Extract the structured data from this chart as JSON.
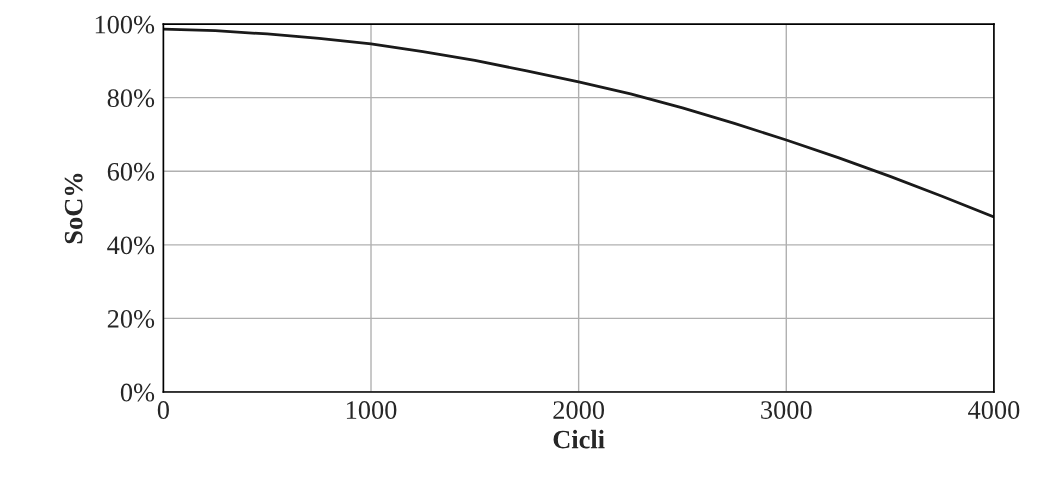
{
  "chart_data": {
    "type": "line",
    "xlabel": "Cicli",
    "ylabel": "SoC%",
    "x": [
      0,
      250,
      500,
      750,
      1000,
      1250,
      1500,
      1750,
      2000,
      2250,
      2500,
      2750,
      3000,
      3250,
      3500,
      3750,
      4000
    ],
    "series": [
      {
        "color": "#1a1a1a",
        "values": [
          98.6,
          98.2,
          97.3,
          96.1,
          94.6,
          92.5,
          90.1,
          87.3,
          84.3,
          81.0,
          77.2,
          73.0,
          68.5,
          63.7,
          58.6,
          53.2,
          47.6
        ]
      }
    ],
    "xlim": [
      0,
      4000
    ],
    "xticks": [
      0,
      1000,
      2000,
      3000,
      4000
    ],
    "ylim": [
      0,
      100
    ],
    "yticks": [
      {
        "value": 0,
        "label": "0%"
      },
      {
        "value": 20,
        "label": "20%"
      },
      {
        "value": 40,
        "label": "40%"
      },
      {
        "value": 60,
        "label": "60%"
      },
      {
        "value": 80,
        "label": "80%"
      },
      {
        "value": 100,
        "label": "100%"
      }
    ],
    "grid": true,
    "marker": "none",
    "line_style": "solid"
  }
}
